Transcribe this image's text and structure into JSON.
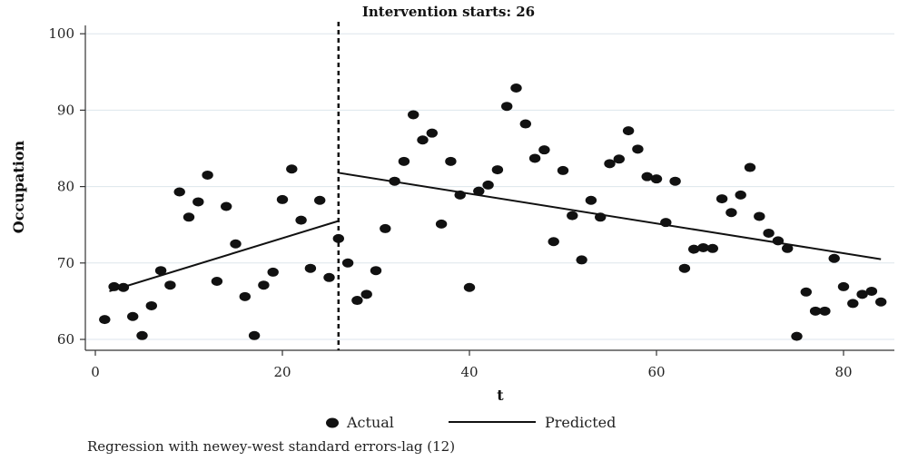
{
  "chart_data": {
    "type": "scatter",
    "title": "Intervention starts: 26",
    "xlabel": "t",
    "ylabel": "Occupation",
    "xlim": [
      0,
      85
    ],
    "ylim": [
      59,
      101
    ],
    "xticks": [
      0,
      20,
      40,
      60,
      80
    ],
    "yticks": [
      60,
      70,
      80,
      90,
      100
    ],
    "grid": true,
    "intervention_x": 26,
    "legend": {
      "placement": "bottom"
    },
    "series": [
      {
        "name": "Actual",
        "kind": "points",
        "color": "#111111",
        "points": [
          [
            1,
            62.6
          ],
          [
            2,
            66.9
          ],
          [
            3,
            66.8
          ],
          [
            4,
            63.0
          ],
          [
            5,
            60.5
          ],
          [
            6,
            64.4
          ],
          [
            7,
            69.0
          ],
          [
            8,
            67.1
          ],
          [
            9,
            79.3
          ],
          [
            10,
            76.0
          ],
          [
            11,
            78.0
          ],
          [
            12,
            81.5
          ],
          [
            13,
            67.6
          ],
          [
            14,
            77.4
          ],
          [
            15,
            72.5
          ],
          [
            16,
            65.6
          ],
          [
            17,
            60.5
          ],
          [
            18,
            67.1
          ],
          [
            19,
            68.8
          ],
          [
            20,
            78.3
          ],
          [
            21,
            82.3
          ],
          [
            22,
            75.6
          ],
          [
            23,
            69.3
          ],
          [
            24,
            78.2
          ],
          [
            25,
            68.1
          ],
          [
            26,
            73.2
          ],
          [
            27,
            70.0
          ],
          [
            28,
            65.1
          ],
          [
            29,
            65.9
          ],
          [
            30,
            69.0
          ],
          [
            31,
            74.5
          ],
          [
            32,
            80.7
          ],
          [
            33,
            83.3
          ],
          [
            34,
            89.4
          ],
          [
            35,
            86.1
          ],
          [
            36,
            87.0
          ],
          [
            37,
            75.1
          ],
          [
            38,
            83.3
          ],
          [
            39,
            78.9
          ],
          [
            40,
            66.8
          ],
          [
            41,
            79.4
          ],
          [
            42,
            80.2
          ],
          [
            43,
            82.2
          ],
          [
            44,
            90.5
          ],
          [
            45,
            92.9
          ],
          [
            46,
            88.2
          ],
          [
            47,
            83.7
          ],
          [
            48,
            84.8
          ],
          [
            49,
            72.8
          ],
          [
            50,
            82.1
          ],
          [
            51,
            76.2
          ],
          [
            52,
            70.4
          ],
          [
            53,
            78.2
          ],
          [
            54,
            76.0
          ],
          [
            55,
            83.0
          ],
          [
            56,
            83.6
          ],
          [
            57,
            87.3
          ],
          [
            58,
            84.9
          ],
          [
            59,
            81.3
          ],
          [
            60,
            81.0
          ],
          [
            61,
            75.3
          ],
          [
            62,
            80.7
          ],
          [
            63,
            69.3
          ],
          [
            64,
            71.8
          ],
          [
            65,
            72.0
          ],
          [
            66,
            71.9
          ],
          [
            67,
            78.4
          ],
          [
            68,
            76.6
          ],
          [
            69,
            78.9
          ],
          [
            70,
            82.5
          ],
          [
            71,
            76.1
          ],
          [
            72,
            73.9
          ],
          [
            73,
            72.9
          ],
          [
            74,
            71.9
          ],
          [
            75,
            60.4
          ],
          [
            76,
            66.2
          ],
          [
            77,
            63.7
          ],
          [
            78,
            63.7
          ],
          [
            79,
            70.6
          ],
          [
            80,
            66.9
          ],
          [
            81,
            64.7
          ],
          [
            82,
            65.9
          ],
          [
            83,
            66.3
          ],
          [
            84,
            64.9
          ]
        ]
      },
      {
        "name": "Predicted",
        "kind": "segments",
        "color": "#111111",
        "segments": [
          [
            [
              1.5,
              66.3
            ],
            [
              26,
              75.5
            ]
          ],
          [
            [
              26,
              81.8
            ],
            [
              84,
              70.5
            ]
          ]
        ]
      }
    ],
    "note": "Regression with newey-west standard errors-lag (12)"
  }
}
